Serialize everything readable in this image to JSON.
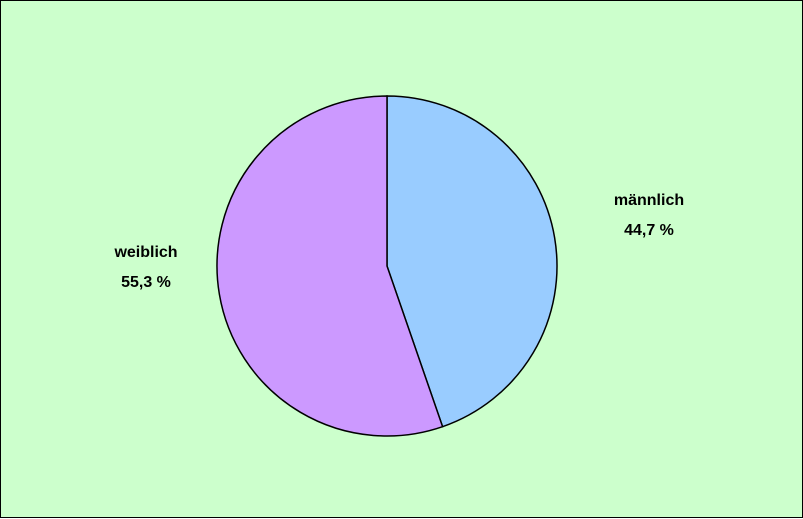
{
  "chart_data": {
    "type": "pie",
    "title": "",
    "slices": [
      {
        "name": "männlich",
        "value": 44.7,
        "label": "44,7 %",
        "color": "#99ccff"
      },
      {
        "name": "weiblich",
        "value": 55.3,
        "label": "55,3 %",
        "color": "#cc99ff"
      }
    ],
    "start_angle_deg": 0,
    "direction": "clockwise",
    "background_color": "#ccffcc",
    "legend": "none"
  }
}
